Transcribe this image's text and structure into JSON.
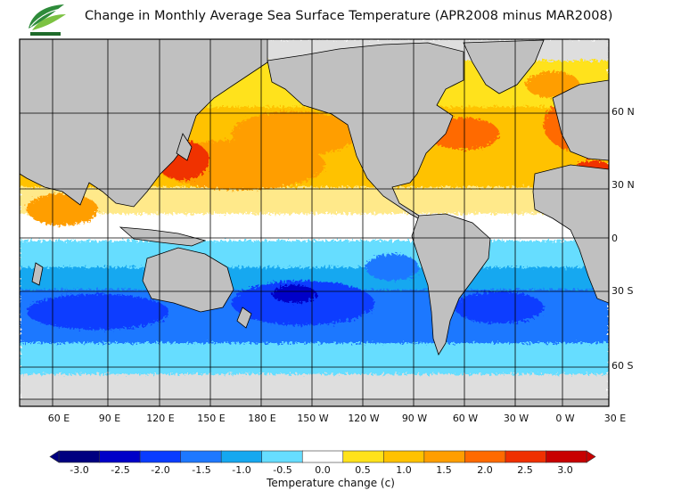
{
  "title": "Change in Monthly Average Sea Surface Temperature (APR2008 minus MAR2008)",
  "logo": {
    "icon": "leaf-logo",
    "colors": [
      "#2e8b3a",
      "#7cc242",
      "#1f6b2a"
    ]
  },
  "map": {
    "projection": "equirectangular",
    "lon_labels": [
      "60 E",
      "90 E",
      "120 E",
      "150 E",
      "180 E",
      "150 W",
      "120 W",
      "90 W",
      "60 W",
      "30 W",
      "0 W",
      "30 E"
    ],
    "lat_labels": [
      "60 N",
      "30 N",
      "0",
      "30 S",
      "60 S"
    ],
    "land_color": "#c0c0c0",
    "ice_color": "#dedede",
    "grid_color": "#000000"
  },
  "colorbar": {
    "ticks": [
      "-3.0",
      "-2.5",
      "-2.0",
      "-1.5",
      "-1.0",
      "-0.5",
      "0.0",
      "0.5",
      "1.0",
      "1.5",
      "2.0",
      "2.5",
      "3.0"
    ],
    "colors": [
      "#000080",
      "#0000c8",
      "#0a3cff",
      "#1e78ff",
      "#15a8f0",
      "#66ddff",
      "#ffffff",
      "#ffe21a",
      "#ffc200",
      "#ff9e00",
      "#ff6a00",
      "#f03000",
      "#c80000"
    ],
    "title": "Temperature change  (c)"
  }
}
